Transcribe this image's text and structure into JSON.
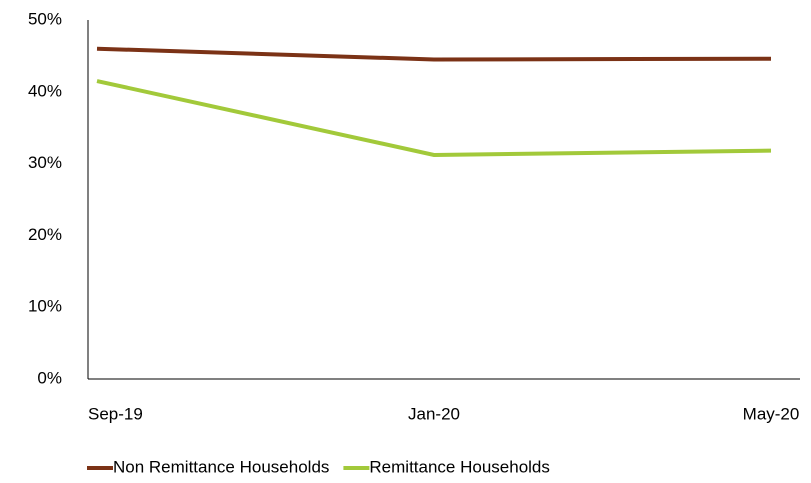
{
  "chart_data": {
    "type": "line",
    "categories": [
      "Sep-19",
      "Jan-20",
      "May-20"
    ],
    "series": [
      {
        "name": "Non Remittance Households",
        "color": "#7b3216",
        "values": [
          46,
          44.5,
          44.6
        ]
      },
      {
        "name": "Remittance Households",
        "color": "#a2c93a",
        "values": [
          41.5,
          31.2,
          31.8
        ]
      }
    ],
    "ylim": [
      0,
      50
    ],
    "yticks": [
      {
        "value": 0,
        "label": "0%"
      },
      {
        "value": 10,
        "label": "10%"
      },
      {
        "value": 20,
        "label": "20%"
      },
      {
        "value": 30,
        "label": "30%"
      },
      {
        "value": 40,
        "label": "40%"
      },
      {
        "value": 50,
        "label": "50%"
      }
    ],
    "grid": false,
    "legend": "bottom"
  }
}
